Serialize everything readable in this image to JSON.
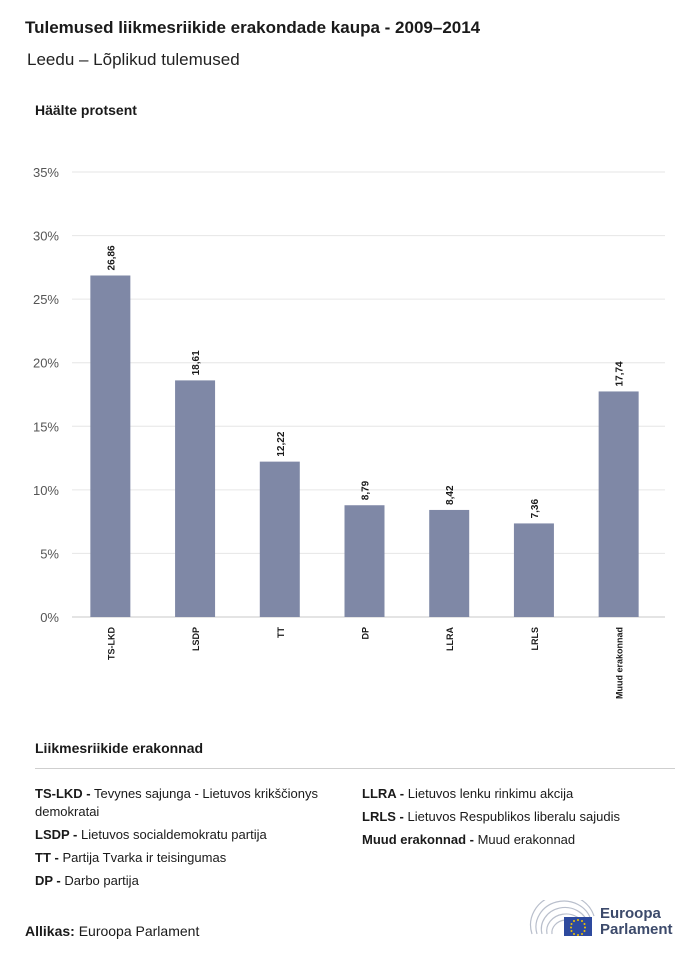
{
  "header": {
    "title": "Tulemused liikmesriikide erakondade kaupa - 2009–2014",
    "subtitle": "Leedu – Lõplikud tulemused",
    "y_axis_title": "Häälte protsent"
  },
  "chart_data": {
    "type": "bar",
    "title": "Tulemused liikmesriikide erakondade kaupa - 2009–2014",
    "subtitle": "Leedu – Lõplikud tulemused",
    "ylabel": "Häälte protsent",
    "xlabel": "",
    "categories": [
      "TS-LKD",
      "LSDP",
      "TT",
      "DP",
      "LLRA",
      "LRLS",
      "Muud erakonnad"
    ],
    "values": [
      26.86,
      18.61,
      12.22,
      8.79,
      8.42,
      7.36,
      17.74
    ],
    "value_labels": [
      "26,86",
      "18,61",
      "12,22",
      "8,79",
      "8,42",
      "7,36",
      "17,74"
    ],
    "ylim": [
      0,
      35
    ],
    "yticks": [
      0,
      5,
      10,
      15,
      20,
      25,
      30,
      35
    ],
    "ytick_labels": [
      "0%",
      "5%",
      "10%",
      "15%",
      "20%",
      "25%",
      "30%",
      "35%"
    ],
    "grid": true,
    "bar_color": "#7f88a6"
  },
  "legend": {
    "title": "Liikmesriikide erakonnad",
    "left": [
      {
        "abbr": "TS-LKD -",
        "name": "Tevynes sajunga - Lietuvos krikščionys demokratai"
      },
      {
        "abbr": "LSDP -",
        "name": "Lietuvos socialdemokratu partija"
      },
      {
        "abbr": "TT -",
        "name": "Partija Tvarka ir teisingumas"
      },
      {
        "abbr": "DP -",
        "name": "Darbo partija"
      }
    ],
    "right": [
      {
        "abbr": "LLRA -",
        "name": "Lietuvos lenku rinkimu akcija"
      },
      {
        "abbr": "LRLS -",
        "name": "Lietuvos Respublikos liberalu sajudis"
      },
      {
        "abbr": "Muud erakonnad -",
        "name": "Muud erakonnad"
      }
    ]
  },
  "footer": {
    "source_label": "Allikas:",
    "source_value": "Euroopa Parlament",
    "logo_line1": "Euroopa",
    "logo_line2": "Parlament"
  }
}
